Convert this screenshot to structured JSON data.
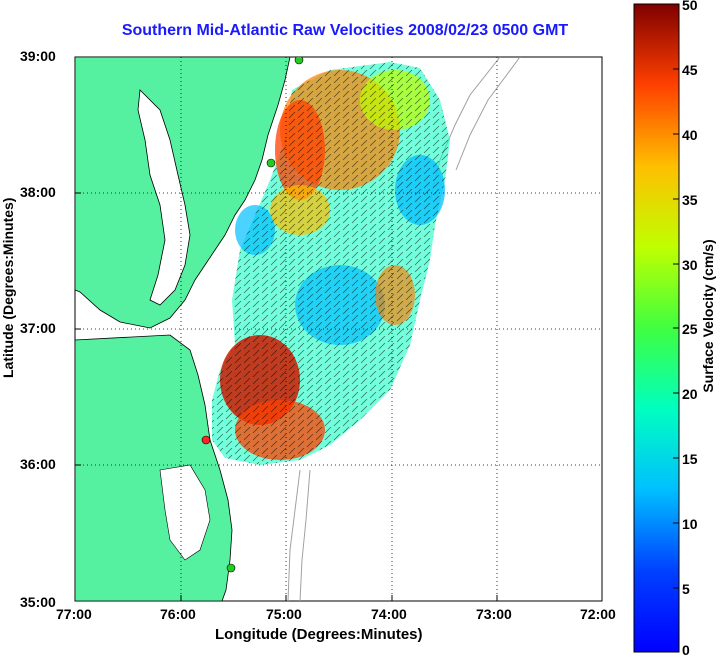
{
  "title": "Southern Mid-Atlantic Raw Velocities 2008/02/23 0500 GMT",
  "xaxis": {
    "label": "Longitude (Degrees:Minutes)",
    "ticks": [
      "77:00",
      "76:00",
      "75:00",
      "74:00",
      "73:00",
      "72:00"
    ],
    "range": [
      -77,
      -72
    ]
  },
  "yaxis": {
    "label": "Latitude (Degrees:Minutes)",
    "ticks": [
      "39:00",
      "38:00",
      "37:00",
      "36:00",
      "35:00"
    ],
    "range": [
      35,
      39
    ]
  },
  "colorbar": {
    "label": "Surface Velocity (cm/s)",
    "ticks": [
      "50",
      "45",
      "40",
      "35",
      "30",
      "25",
      "20",
      "15",
      "10",
      "5",
      "0"
    ],
    "range": [
      0,
      50
    ],
    "colormap": "jet"
  },
  "colors": {
    "title": "#1a1aff",
    "land": "#55f0a0",
    "coastline": "#000000",
    "bathymetry": "#a0a0a0",
    "sites": "#22cc22",
    "site_highlight": "#ff2222",
    "grid": "#000000"
  },
  "legend": {}
}
